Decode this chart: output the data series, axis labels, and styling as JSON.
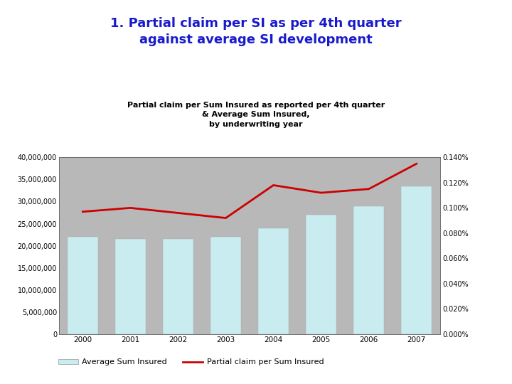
{
  "title": "1. Partial claim per SI as per 4th quarter\nagainst average SI development",
  "subtitle": "Partial claim per Sum Insured as reported per 4th quarter\n& Average Sum Insured,\nby underwriting year",
  "years": [
    2000,
    2001,
    2002,
    2003,
    2004,
    2005,
    2006,
    2007
  ],
  "avg_si": [
    22000000,
    21500000,
    21500000,
    22000000,
    24000000,
    27000000,
    29000000,
    33500000
  ],
  "partial_claim": [
    0.097,
    0.1,
    0.096,
    0.092,
    0.118,
    0.112,
    0.115,
    0.135
  ],
  "bar_color": "#c8ecf0",
  "line_color": "#cc0000",
  "chart_bg": "#b8b8b8",
  "title_color": "#1a1acc",
  "subtitle_color": "#000000",
  "page_bg": "#ffffff",
  "left_ylim": [
    0,
    40000000
  ],
  "right_ylim": [
    0.0,
    0.14
  ],
  "left_yticks": [
    0,
    5000000,
    10000000,
    15000000,
    20000000,
    25000000,
    30000000,
    35000000,
    40000000
  ],
  "right_yticks": [
    0.0,
    0.02,
    0.04,
    0.06,
    0.08,
    0.1,
    0.12,
    0.14
  ],
  "legend_bar_label": "Average Sum Insured",
  "legend_line_label": "Partial claim per Sum Insured"
}
